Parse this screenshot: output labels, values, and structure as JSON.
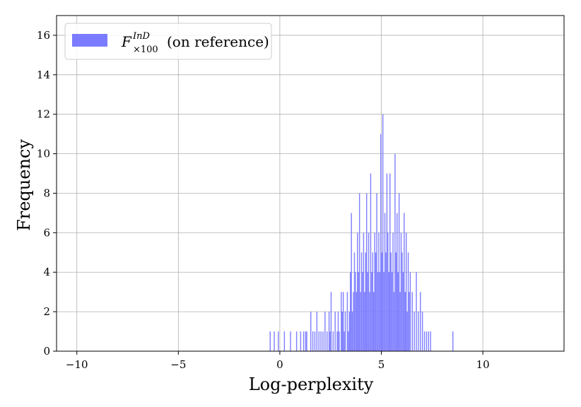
{
  "chart_data": {
    "type": "bar",
    "title": "",
    "xlabel": "Log-perplexity",
    "ylabel": "Frequency",
    "xlim": [
      -11,
      14
    ],
    "ylim": [
      0,
      17
    ],
    "xticks": [
      -10,
      -5,
      0,
      5,
      10
    ],
    "xtick_labels": [
      "−10",
      "−5",
      "0",
      "5",
      "10"
    ],
    "yticks": [
      0,
      2,
      4,
      6,
      8,
      10,
      12,
      14,
      16
    ],
    "ytick_labels": [
      "0",
      "2",
      "4",
      "6",
      "8",
      "10",
      "12",
      "14",
      "16"
    ],
    "grid": true,
    "legend": {
      "placement": "top-left",
      "entries": [
        {
          "main": "F",
          "sup": "InD",
          "sub": "×100",
          "suffix": "(on reference)"
        }
      ]
    },
    "series": [
      {
        "color": "#7b7bff",
        "bin_width": 0.05,
        "bins": [
          [
            -0.5,
            1
          ],
          [
            -0.3,
            1
          ],
          [
            -0.1,
            1
          ],
          [
            0.2,
            1
          ],
          [
            0.5,
            1
          ],
          [
            0.8,
            1
          ],
          [
            1.0,
            1
          ],
          [
            1.15,
            1
          ],
          [
            1.25,
            1
          ],
          [
            1.3,
            1
          ],
          [
            1.5,
            2
          ],
          [
            1.6,
            1
          ],
          [
            1.7,
            1
          ],
          [
            1.8,
            2
          ],
          [
            1.9,
            1
          ],
          [
            2.0,
            1
          ],
          [
            2.1,
            1
          ],
          [
            2.2,
            2
          ],
          [
            2.3,
            1
          ],
          [
            2.4,
            2
          ],
          [
            2.45,
            1
          ],
          [
            2.5,
            3
          ],
          [
            2.6,
            1
          ],
          [
            2.7,
            2
          ],
          [
            2.8,
            1
          ],
          [
            2.85,
            2
          ],
          [
            2.9,
            1
          ],
          [
            3.0,
            3
          ],
          [
            3.05,
            2
          ],
          [
            3.1,
            3
          ],
          [
            3.15,
            1
          ],
          [
            3.2,
            2
          ],
          [
            3.3,
            3
          ],
          [
            3.35,
            1
          ],
          [
            3.4,
            2
          ],
          [
            3.45,
            4
          ],
          [
            3.5,
            7
          ],
          [
            3.55,
            2
          ],
          [
            3.6,
            3
          ],
          [
            3.65,
            5
          ],
          [
            3.7,
            4
          ],
          [
            3.75,
            3
          ],
          [
            3.8,
            6
          ],
          [
            3.85,
            4
          ],
          [
            3.9,
            8
          ],
          [
            3.95,
            3
          ],
          [
            4.0,
            5
          ],
          [
            4.05,
            4
          ],
          [
            4.1,
            6
          ],
          [
            4.15,
            3
          ],
          [
            4.2,
            5
          ],
          [
            4.25,
            8
          ],
          [
            4.3,
            4
          ],
          [
            4.35,
            6
          ],
          [
            4.4,
            3
          ],
          [
            4.45,
            9
          ],
          [
            4.5,
            4
          ],
          [
            4.55,
            5
          ],
          [
            4.6,
            3
          ],
          [
            4.65,
            6
          ],
          [
            4.7,
            5
          ],
          [
            4.75,
            8
          ],
          [
            4.8,
            4
          ],
          [
            4.85,
            6
          ],
          [
            4.9,
            4
          ],
          [
            4.95,
            11
          ],
          [
            5.0,
            5
          ],
          [
            5.05,
            12
          ],
          [
            5.1,
            4
          ],
          [
            5.15,
            7
          ],
          [
            5.2,
            5
          ],
          [
            5.25,
            9
          ],
          [
            5.3,
            6
          ],
          [
            5.35,
            4
          ],
          [
            5.4,
            9
          ],
          [
            5.45,
            5
          ],
          [
            5.5,
            4
          ],
          [
            5.55,
            6
          ],
          [
            5.6,
            3
          ],
          [
            5.65,
            10
          ],
          [
            5.7,
            5
          ],
          [
            5.75,
            7
          ],
          [
            5.8,
            4
          ],
          [
            5.85,
            8
          ],
          [
            5.9,
            3
          ],
          [
            5.95,
            6
          ],
          [
            6.0,
            5
          ],
          [
            6.05,
            4
          ],
          [
            6.1,
            7
          ],
          [
            6.15,
            3
          ],
          [
            6.2,
            6
          ],
          [
            6.25,
            2
          ],
          [
            6.3,
            5
          ],
          [
            6.35,
            3
          ],
          [
            6.4,
            4
          ],
          [
            6.5,
            3
          ],
          [
            6.6,
            2
          ],
          [
            6.7,
            4
          ],
          [
            6.8,
            2
          ],
          [
            6.9,
            3
          ],
          [
            7.0,
            2
          ],
          [
            7.1,
            1
          ],
          [
            7.2,
            1
          ],
          [
            7.3,
            1
          ],
          [
            7.4,
            1
          ],
          [
            8.5,
            1
          ]
        ]
      }
    ]
  }
}
